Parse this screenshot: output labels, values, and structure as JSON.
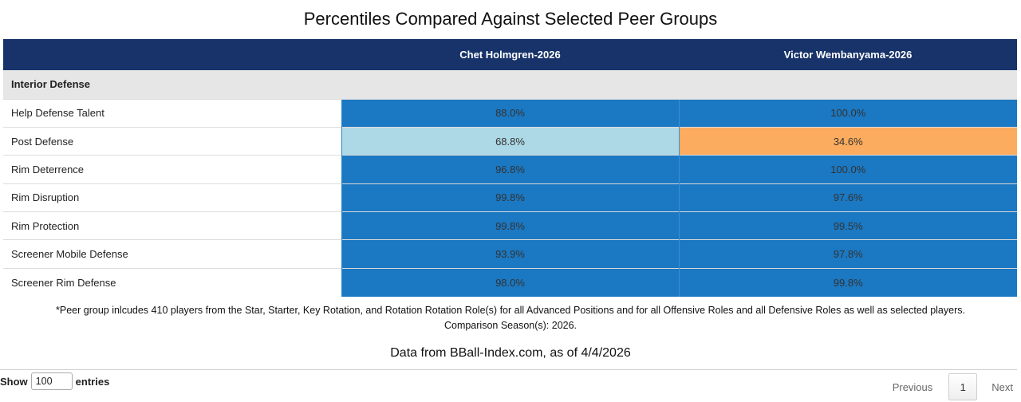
{
  "title": "Percentiles Compared Against Selected Peer Groups",
  "table": {
    "columns": [
      "",
      "Chet Holmgren-2026",
      "Victor Wembanyama-2026"
    ],
    "group": "Interior Defense",
    "rows": [
      {
        "label": "Help Defense Talent",
        "values": [
          "88.0%",
          "100.0%"
        ],
        "colors": [
          "#1b78c2",
          "#1b78c2"
        ]
      },
      {
        "label": "Post Defense",
        "values": [
          "68.8%",
          "34.6%"
        ],
        "colors": [
          "#add8e6",
          "#fbac5f"
        ]
      },
      {
        "label": "Rim Deterrence",
        "values": [
          "96.8%",
          "100.0%"
        ],
        "colors": [
          "#1b78c2",
          "#1b78c2"
        ]
      },
      {
        "label": "Rim Disruption",
        "values": [
          "99.8%",
          "97.6%"
        ],
        "colors": [
          "#1b78c2",
          "#1b78c2"
        ]
      },
      {
        "label": "Rim Protection",
        "values": [
          "99.8%",
          "99.5%"
        ],
        "colors": [
          "#1b78c2",
          "#1b78c2"
        ]
      },
      {
        "label": "Screener Mobile Defense",
        "values": [
          "93.9%",
          "97.8%"
        ],
        "colors": [
          "#1b78c2",
          "#1b78c2"
        ]
      },
      {
        "label": "Screener Rim Defense",
        "values": [
          "98.0%",
          "99.8%"
        ],
        "colors": [
          "#1b78c2",
          "#1b78c2"
        ]
      }
    ]
  },
  "note": {
    "line1": "*Peer group inlcudes 410 players from the Star, Starter, Key Rotation, and Rotation Rotation Role(s) for all Advanced Positions and for all Offensive Roles and all Defensive Roles as well as selected players.",
    "line2": "Comparison Season(s): 2026."
  },
  "source": "Data from BBall-Index.com, as of 4/4/2026",
  "length": {
    "show_label": "Show",
    "value": "100",
    "entries_label": "entries"
  },
  "pager": {
    "previous": "Previous",
    "page": "1",
    "next": "Next"
  }
}
